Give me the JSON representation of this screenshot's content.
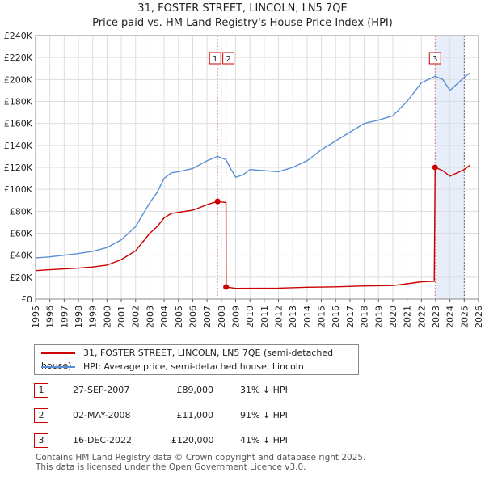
{
  "header": {
    "title": "31, FOSTER STREET, LINCOLN, LN5 7QE",
    "subtitle": "Price paid vs. HM Land Registry's House Price Index (HPI)"
  },
  "chart_data": {
    "type": "line",
    "title": "31, FOSTER STREET, LINCOLN, LN5 7QE",
    "subtitle": "Price paid vs. HM Land Registry's House Price Index (HPI)",
    "x_range": [
      1995,
      2026
    ],
    "ylim": [
      0,
      240000
    ],
    "y_ticks": [
      0,
      20000,
      40000,
      60000,
      80000,
      100000,
      120000,
      140000,
      160000,
      180000,
      200000,
      220000,
      240000
    ],
    "y_tick_labels": [
      "£0",
      "£20K",
      "£40K",
      "£60K",
      "£80K",
      "£100K",
      "£120K",
      "£140K",
      "£160K",
      "£180K",
      "£200K",
      "£220K",
      "£240K"
    ],
    "x_ticks": [
      1995,
      1996,
      1997,
      1998,
      1999,
      2000,
      2001,
      2002,
      2003,
      2004,
      2005,
      2006,
      2007,
      2008,
      2009,
      2010,
      2011,
      2012,
      2013,
      2014,
      2015,
      2016,
      2017,
      2018,
      2019,
      2020,
      2021,
      2022,
      2023,
      2024,
      2025,
      2026
    ],
    "grid": true,
    "legend_position": "bottom",
    "shaded_region": [
      2023.0,
      2025.0
    ],
    "series": [
      {
        "name": "31, FOSTER STREET, LINCOLN, LN5 7QE (semi-detached house)",
        "color": "#cc0000",
        "points": [
          [
            1995.0,
            26000
          ],
          [
            1996.0,
            26800
          ],
          [
            1997.0,
            27500
          ],
          [
            1998.0,
            28300
          ],
          [
            1999.0,
            29300
          ],
          [
            2000.0,
            31000
          ],
          [
            2001.0,
            36000
          ],
          [
            2002.0,
            44000
          ],
          [
            2003.0,
            60000
          ],
          [
            2003.5,
            66000
          ],
          [
            2004.0,
            74000
          ],
          [
            2004.5,
            78000
          ],
          [
            2005.0,
            79000
          ],
          [
            2006.0,
            81000
          ],
          [
            2007.0,
            86000
          ],
          [
            2007.74,
            89000
          ],
          [
            2008.0,
            88500
          ],
          [
            2008.33,
            88000
          ],
          [
            2008.34,
            11000
          ],
          [
            2009.0,
            9800
          ],
          [
            2010.0,
            9900
          ],
          [
            2012.0,
            10000
          ],
          [
            2014.0,
            10800
          ],
          [
            2016.0,
            11200
          ],
          [
            2018.0,
            12000
          ],
          [
            2020.0,
            12400
          ],
          [
            2021.0,
            14000
          ],
          [
            2022.0,
            15800
          ],
          [
            2022.9,
            16300
          ],
          [
            2022.96,
            120000
          ],
          [
            2023.5,
            117000
          ],
          [
            2024.0,
            112000
          ],
          [
            2024.5,
            115000
          ],
          [
            2025.0,
            118000
          ],
          [
            2025.4,
            122000
          ]
        ]
      },
      {
        "name": "HPI: Average price, semi-detached house, Lincoln",
        "color": "#5b8fd6",
        "points": [
          [
            1995.0,
            37500
          ],
          [
            1996.0,
            38500
          ],
          [
            1997.0,
            40000
          ],
          [
            1998.0,
            41500
          ],
          [
            1999.0,
            43500
          ],
          [
            2000.0,
            47000
          ],
          [
            2001.0,
            54000
          ],
          [
            2002.0,
            66000
          ],
          [
            2003.0,
            88000
          ],
          [
            2003.5,
            97000
          ],
          [
            2004.0,
            110000
          ],
          [
            2004.5,
            115000
          ],
          [
            2005.0,
            116000
          ],
          [
            2006.0,
            119000
          ],
          [
            2007.0,
            126000
          ],
          [
            2007.74,
            130000
          ],
          [
            2008.33,
            127000
          ],
          [
            2008.6,
            120000
          ],
          [
            2009.0,
            111000
          ],
          [
            2009.5,
            113000
          ],
          [
            2010.0,
            118000
          ],
          [
            2011.0,
            117000
          ],
          [
            2012.0,
            116000
          ],
          [
            2013.0,
            120000
          ],
          [
            2014.0,
            126000
          ],
          [
            2015.0,
            136000
          ],
          [
            2016.0,
            144000
          ],
          [
            2017.0,
            152000
          ],
          [
            2018.0,
            160000
          ],
          [
            2019.0,
            163000
          ],
          [
            2020.0,
            167000
          ],
          [
            2021.0,
            180000
          ],
          [
            2022.0,
            197000
          ],
          [
            2022.96,
            203000
          ],
          [
            2023.5,
            200000
          ],
          [
            2024.0,
            190000
          ],
          [
            2024.5,
            196000
          ],
          [
            2025.0,
            202000
          ],
          [
            2025.4,
            206000
          ]
        ]
      }
    ],
    "sales": [
      {
        "label": "1",
        "x": 2007.74,
        "price": 89000
      },
      {
        "label": "2",
        "x": 2008.33,
        "price": 11000
      },
      {
        "label": "3",
        "x": 2022.96,
        "price": 120000
      }
    ]
  },
  "legend": {
    "property_label": "31, FOSTER STREET, LINCOLN, LN5 7QE (semi-detached house)",
    "hpi_label": "HPI: Average price, semi-detached house, Lincoln",
    "property_color": "#cc0000",
    "hpi_color": "#5b8fd6"
  },
  "sales_table": [
    {
      "num": "1",
      "date": "27-SEP-2007",
      "price": "£89,000",
      "hpi": "31% ↓ HPI"
    },
    {
      "num": "2",
      "date": "02-MAY-2008",
      "price": "£11,000",
      "hpi": "91% ↓ HPI"
    },
    {
      "num": "3",
      "date": "16-DEC-2022",
      "price": "£120,000",
      "hpi": "41% ↓ HPI"
    }
  ],
  "footer": {
    "line1": "Contains HM Land Registry data © Crown copyright and database right 2025.",
    "line2": "This data is licensed under the Open Government Licence v3.0."
  }
}
